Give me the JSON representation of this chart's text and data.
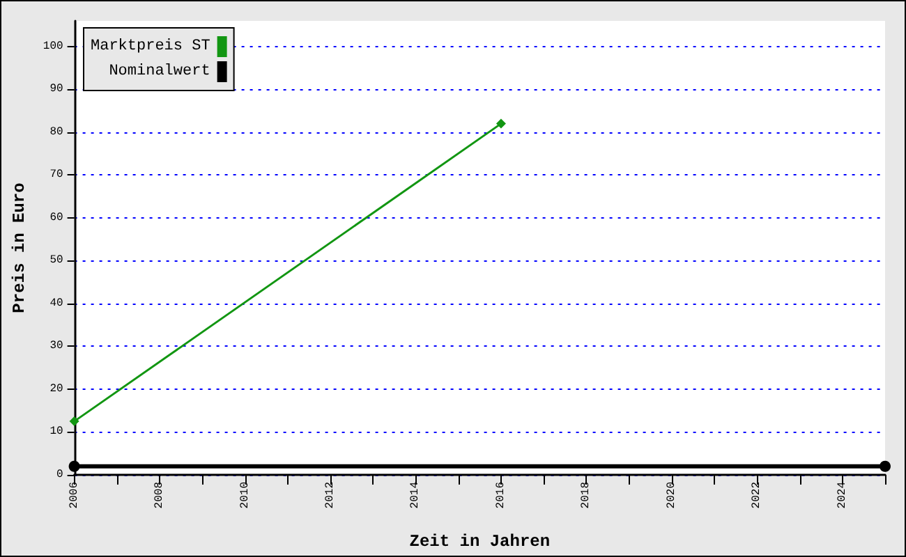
{
  "chart_data": {
    "type": "line",
    "xlabel": "Zeit in Jahren",
    "ylabel": "Preis in Euro",
    "series": [
      {
        "name": "Marktpreis ST",
        "color": "#129612",
        "marker": "diamond",
        "x": [
          2006,
          2016
        ],
        "values": [
          12.5,
          82
        ]
      },
      {
        "name": "Nominalwert",
        "color": "#000000",
        "marker": "circle",
        "x": [
          2006,
          2025
        ],
        "values": [
          2,
          2
        ]
      }
    ],
    "xlim": [
      2006,
      2025
    ],
    "xticks": [
      2006,
      {
        "value": 2007,
        "label": null
      },
      2008,
      {
        "value": 2009,
        "label": null
      },
      2010,
      {
        "value": 2011,
        "label": null
      },
      2012,
      {
        "value": 2013,
        "label": null
      },
      2014,
      {
        "value": 2015,
        "label": null
      },
      2016,
      {
        "value": 2017,
        "label": null
      },
      2018,
      {
        "value": 2019,
        "label": null
      },
      2020,
      {
        "value": 2021,
        "label": null
      },
      2022,
      {
        "value": 2023,
        "label": null
      },
      2024,
      {
        "value": 2025,
        "label": null
      }
    ],
    "ylim": [
      0,
      106
    ],
    "yticks": [
      0,
      10,
      20,
      30,
      40,
      50,
      60,
      70,
      80,
      90,
      100
    ],
    "grid": "y",
    "legend": "top left"
  }
}
